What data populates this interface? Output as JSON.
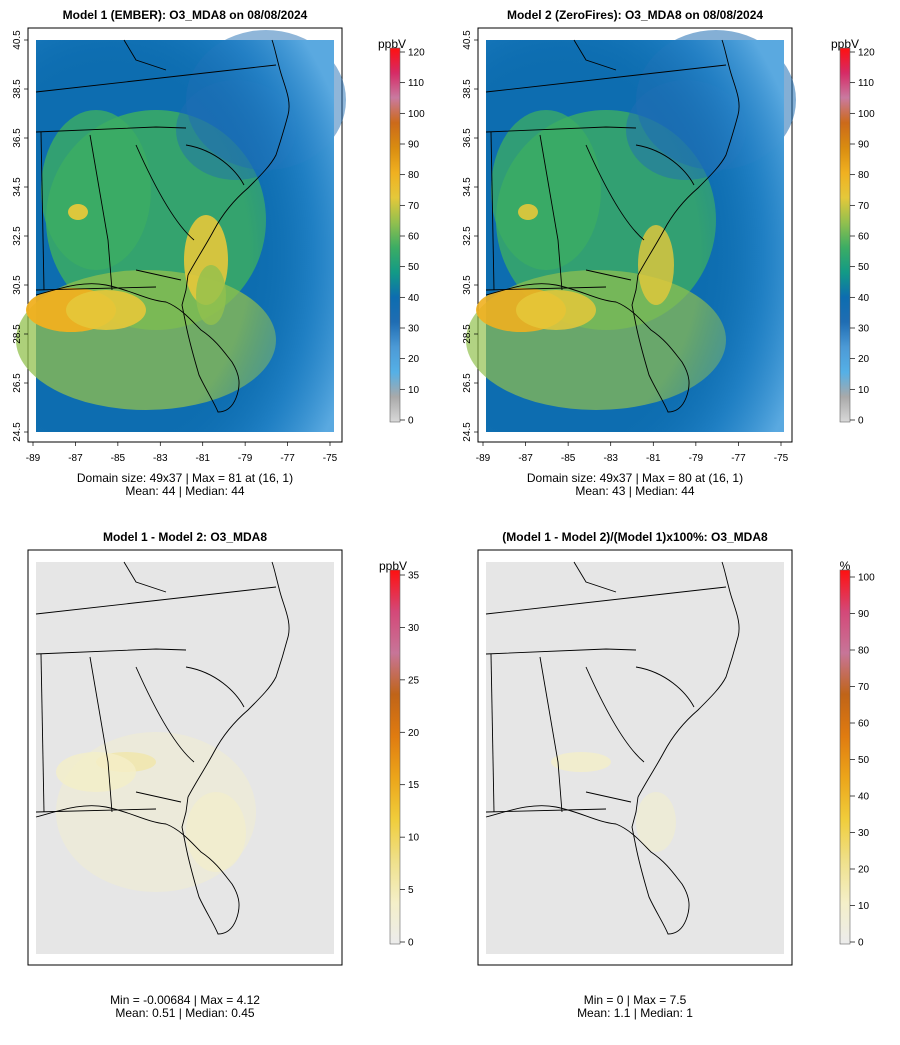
{
  "palette": {
    "field": [
      "#d9d9d9",
      "#a9a9a9",
      "#55b0e6",
      "#4c9ad6",
      "#1f6db3",
      "#0d6db0",
      "#129a86",
      "#3cad63",
      "#92c04e",
      "#e5c83a",
      "#f0b020",
      "#d98c10",
      "#cc6a1a",
      "#c97aa0",
      "#d62b66",
      "#ff1010"
    ],
    "diff": [
      "#ececec",
      "#f4efc8",
      "#efe08a",
      "#f0cd3b",
      "#eca51a",
      "#e07b10",
      "#c06418",
      "#c77598",
      "#d44878",
      "#ff1010"
    ],
    "map_bg": "#e6e6e6",
    "ocean_field": "#5aa9e0"
  },
  "panels": [
    {
      "id": "model1",
      "title": "Model 1 (EMBER): O3_MDA8 on 08/08/2024",
      "unit": "ppbV",
      "scale_ticks": [
        "120",
        "110",
        "100",
        "90",
        "80",
        "70",
        "60",
        "50",
        "40",
        "30",
        "20",
        "10",
        "0"
      ],
      "x_ticks": [
        "-89",
        "-87",
        "-85",
        "-83",
        "-81",
        "-79",
        "-77",
        "-75"
      ],
      "y_ticks": [
        "40.5",
        "38.5",
        "36.5",
        "34.5",
        "32.5",
        "30.5",
        "28.5",
        "26.5",
        "24.5"
      ],
      "stat_line1": "Domain size: 49x37 | Max = 81 at (16, 1)",
      "stat_line2": "Mean: 44 |  Median: 44"
    },
    {
      "id": "model2",
      "title": "Model 2 (ZeroFires): O3_MDA8 on 08/08/2024",
      "unit": "ppbV",
      "scale_ticks": [
        "120",
        "110",
        "100",
        "90",
        "80",
        "70",
        "60",
        "50",
        "40",
        "30",
        "20",
        "10",
        "0"
      ],
      "x_ticks": [
        "-89",
        "-87",
        "-85",
        "-83",
        "-81",
        "-79",
        "-77",
        "-75"
      ],
      "y_ticks": [
        "40.5",
        "38.5",
        "36.5",
        "34.5",
        "32.5",
        "30.5",
        "28.5",
        "26.5",
        "24.5"
      ],
      "stat_line1": "Domain size: 49x37 | Max = 80 at (16, 1)",
      "stat_line2": "Mean: 43 |  Median: 44"
    },
    {
      "id": "diff",
      "title": "Model 1 - Model 2: O3_MDA8",
      "unit": "ppbV",
      "scale_ticks": [
        "35",
        "30",
        "25",
        "20",
        "15",
        "10",
        "5",
        "0"
      ],
      "stat_line1": "Min = -0.00684 | Max = 4.12",
      "stat_line2": "Mean: 0.51 |  Median: 0.45"
    },
    {
      "id": "pct",
      "title": "(Model 1 - Model 2)/(Model 1)x100%: O3_MDA8",
      "unit": "%",
      "scale_ticks": [
        "100",
        "90",
        "80",
        "70",
        "60",
        "50",
        "40",
        "30",
        "20",
        "10",
        "0"
      ],
      "stat_line1": "Min = 0 | Max = 7.5",
      "stat_line2": "Mean: 1.1 |  Median: 1"
    }
  ],
  "chart_data": [
    {
      "type": "heatmap",
      "title": "Model 1 (EMBER): O3_MDA8 on 08/08/2024",
      "units": "ppbV",
      "grid_size": "49x37",
      "xlim": [
        -89,
        -75
      ],
      "ylim": [
        24.5,
        40.5
      ],
      "colorbar_range": [
        0,
        120
      ],
      "max": 81,
      "max_location": "(16, 1)",
      "mean": 44,
      "median": 44
    },
    {
      "type": "heatmap",
      "title": "Model 2 (ZeroFires): O3_MDA8 on 08/08/2024",
      "units": "ppbV",
      "grid_size": "49x37",
      "xlim": [
        -89,
        -75
      ],
      "ylim": [
        24.5,
        40.5
      ],
      "colorbar_range": [
        0,
        120
      ],
      "max": 80,
      "max_location": "(16, 1)",
      "mean": 43,
      "median": 44
    },
    {
      "type": "heatmap",
      "title": "Model 1 - Model 2: O3_MDA8",
      "units": "ppbV",
      "colorbar_range": [
        0,
        35
      ],
      "min": -0.00684,
      "max": 4.12,
      "mean": 0.51,
      "median": 0.45
    },
    {
      "type": "heatmap",
      "title": "(Model 1 - Model 2)/(Model 1)x100%: O3_MDA8",
      "units": "%",
      "colorbar_range": [
        0,
        100
      ],
      "min": 0,
      "max": 7.5,
      "mean": 1.1,
      "median": 1
    }
  ]
}
